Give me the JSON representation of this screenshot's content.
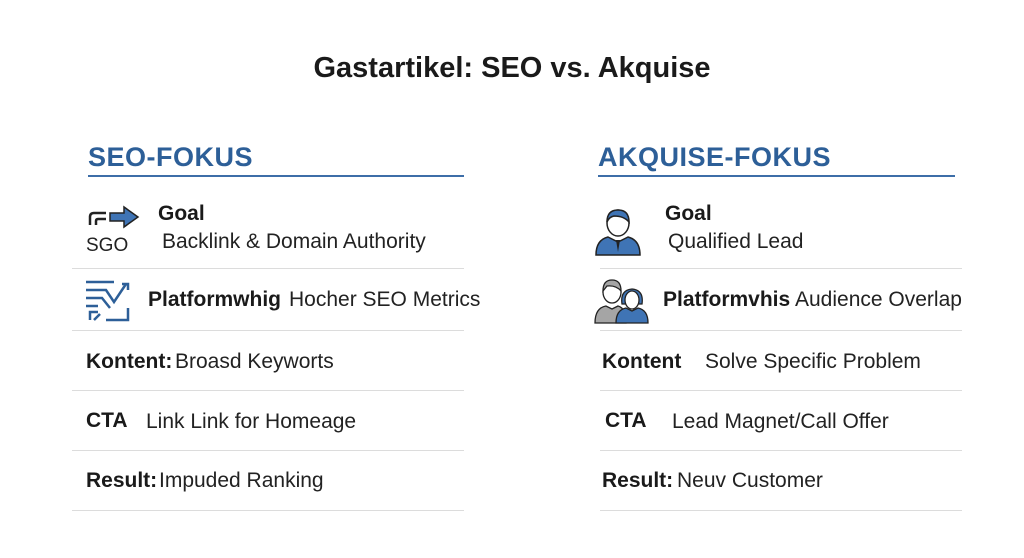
{
  "title": "Gastartikel: SEO vs. Akquise",
  "colors": {
    "accent": "#2d5f98",
    "icon_blue": "#3f74b5",
    "icon_gray": "#a5a5a5"
  },
  "left": {
    "heading": "SEO-FOKUS",
    "rows": [
      {
        "label": "Goal",
        "value": "Backlink & Domain Authority",
        "icon": "seo-arrow-icon",
        "icon_text": "SGO"
      },
      {
        "label": "Platformwhig",
        "value": "Hocher SEO Metrics",
        "icon": "metrics-chart-icon"
      },
      {
        "label": "Kontent:",
        "value": "Broasd Keyworts"
      },
      {
        "label": "CTA",
        "value": "Link Link for Homeage"
      },
      {
        "label": "Result:",
        "value": "Impuded Ranking"
      }
    ]
  },
  "right": {
    "heading": "AKQUISE-FOKUS",
    "rows": [
      {
        "label": "Goal",
        "value": "Qualified Lead",
        "icon": "businessman-icon"
      },
      {
        "label": "Platformvhis",
        "value": "Audience Overlap",
        "icon": "audience-people-icon"
      },
      {
        "label": "Kontent",
        "value": "Solve Specific Problem"
      },
      {
        "label": "CTA",
        "value": "Lead Magnet/Call Offer"
      },
      {
        "label": "Result:",
        "value": "Neuv Customer"
      }
    ]
  }
}
